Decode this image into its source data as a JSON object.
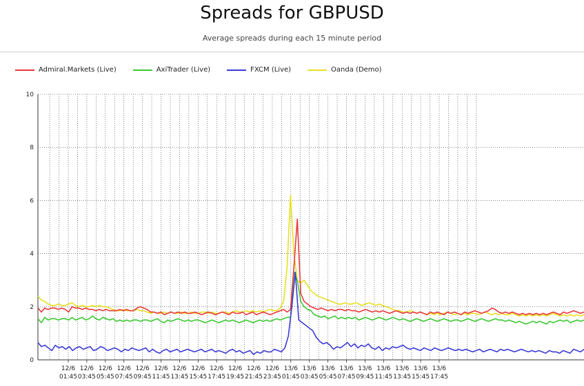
{
  "chart_data": {
    "type": "line",
    "title": "Spreads for GBPUSD",
    "subtitle": "Average spreads during each 15 minute period",
    "ylim": [
      0,
      10
    ],
    "yticks": [
      0,
      2,
      4,
      6,
      8,
      10
    ],
    "grid": true,
    "legend_position": "top-left",
    "x_labels": [
      {
        "date": "12/6",
        "time": "01:45"
      },
      {
        "date": "12/6",
        "time": "03:45"
      },
      {
        "date": "12/6",
        "time": "05:45"
      },
      {
        "date": "12/6",
        "time": "07:45"
      },
      {
        "date": "12/6",
        "time": "09:45"
      },
      {
        "date": "12/6",
        "time": "11:45"
      },
      {
        "date": "12/6",
        "time": "13:45"
      },
      {
        "date": "12/6",
        "time": "15:45"
      },
      {
        "date": "12/6",
        "time": "17:45"
      },
      {
        "date": "12/6",
        "time": "19:45"
      },
      {
        "date": "12/6",
        "time": "21:45"
      },
      {
        "date": "12/6",
        "time": "23:45"
      },
      {
        "date": "13/6",
        "time": "01:45"
      },
      {
        "date": "13/6",
        "time": "03:45"
      },
      {
        "date": "13/6",
        "time": "05:45"
      },
      {
        "date": "13/6",
        "time": "07:45"
      },
      {
        "date": "13/6",
        "time": "09:45"
      },
      {
        "date": "13/6",
        "time": "11:45"
      },
      {
        "date": "13/6",
        "time": "13:45"
      },
      {
        "date": "13/6",
        "time": "15:45"
      },
      {
        "date": "13/6",
        "time": "17:45"
      }
    ],
    "series": [
      {
        "name": "Admiral.Markets (Live)",
        "color": "#e8383d",
        "values": [
          1.95,
          1.8,
          1.95,
          1.9,
          1.95,
          1.95,
          1.9,
          1.95,
          1.9,
          1.8,
          2.0,
          1.95,
          1.95,
          1.9,
          1.95,
          1.9,
          1.9,
          1.85,
          1.9,
          1.85,
          1.9,
          1.85,
          1.85,
          1.85,
          1.9,
          1.85,
          1.9,
          1.85,
          1.85,
          1.95,
          2.0,
          1.95,
          1.9,
          1.8,
          1.8,
          1.75,
          1.8,
          1.7,
          1.75,
          1.8,
          1.75,
          1.8,
          1.75,
          1.8,
          1.75,
          1.75,
          1.8,
          1.75,
          1.7,
          1.75,
          1.8,
          1.75,
          1.7,
          1.75,
          1.8,
          1.75,
          1.7,
          1.8,
          1.75,
          1.75,
          1.8,
          1.7,
          1.75,
          1.8,
          1.7,
          1.75,
          1.8,
          1.75,
          1.7,
          1.75,
          1.8,
          1.85,
          1.9,
          1.8,
          1.9,
          3.5,
          5.3,
          2.5,
          2.2,
          2.1,
          2.0,
          1.95,
          1.9,
          1.95,
          1.9,
          1.85,
          1.9,
          1.85,
          1.9,
          1.9,
          1.85,
          1.9,
          1.85,
          1.85,
          1.8,
          1.85,
          1.9,
          1.85,
          1.8,
          1.85,
          1.8,
          1.85,
          1.8,
          1.75,
          1.8,
          1.85,
          1.8,
          1.75,
          1.8,
          1.75,
          1.8,
          1.75,
          1.8,
          1.75,
          1.7,
          1.8,
          1.75,
          1.8,
          1.75,
          1.7,
          1.8,
          1.75,
          1.8,
          1.75,
          1.7,
          1.8,
          1.75,
          1.8,
          1.85,
          1.8,
          1.75,
          1.8,
          1.85,
          1.95,
          1.9,
          1.8,
          1.75,
          1.8,
          1.75,
          1.8,
          1.75,
          1.7,
          1.75,
          1.7,
          1.75,
          1.7,
          1.75,
          1.7,
          1.75,
          1.7,
          1.75,
          1.8,
          1.75,
          1.7,
          1.8,
          1.75,
          1.8,
          1.85,
          1.8,
          1.75,
          1.8
        ]
      },
      {
        "name": "AxiTrader (Live)",
        "color": "#3cc832",
        "values": [
          1.55,
          1.4,
          1.6,
          1.5,
          1.55,
          1.55,
          1.5,
          1.55,
          1.55,
          1.5,
          1.6,
          1.5,
          1.55,
          1.6,
          1.5,
          1.55,
          1.65,
          1.55,
          1.5,
          1.6,
          1.55,
          1.5,
          1.55,
          1.45,
          1.5,
          1.45,
          1.5,
          1.45,
          1.5,
          1.5,
          1.45,
          1.5,
          1.5,
          1.45,
          1.5,
          1.55,
          1.45,
          1.4,
          1.5,
          1.45,
          1.5,
          1.55,
          1.5,
          1.45,
          1.5,
          1.45,
          1.5,
          1.5,
          1.45,
          1.4,
          1.45,
          1.5,
          1.45,
          1.4,
          1.45,
          1.5,
          1.45,
          1.5,
          1.45,
          1.4,
          1.45,
          1.5,
          1.45,
          1.4,
          1.45,
          1.5,
          1.45,
          1.5,
          1.45,
          1.5,
          1.55,
          1.5,
          1.55,
          1.6,
          1.6,
          3.3,
          3.0,
          2.2,
          2.0,
          1.9,
          1.85,
          1.7,
          1.65,
          1.6,
          1.65,
          1.55,
          1.6,
          1.65,
          1.55,
          1.6,
          1.55,
          1.6,
          1.55,
          1.6,
          1.5,
          1.55,
          1.6,
          1.55,
          1.5,
          1.55,
          1.6,
          1.55,
          1.5,
          1.55,
          1.6,
          1.55,
          1.5,
          1.55,
          1.5,
          1.45,
          1.5,
          1.55,
          1.5,
          1.45,
          1.5,
          1.55,
          1.5,
          1.45,
          1.5,
          1.55,
          1.5,
          1.45,
          1.5,
          1.5,
          1.45,
          1.5,
          1.55,
          1.5,
          1.45,
          1.5,
          1.55,
          1.5,
          1.45,
          1.5,
          1.55,
          1.5,
          1.5,
          1.45,
          1.5,
          1.45,
          1.4,
          1.45,
          1.4,
          1.35,
          1.4,
          1.45,
          1.4,
          1.45,
          1.4,
          1.35,
          1.45,
          1.4,
          1.45,
          1.5,
          1.45,
          1.5,
          1.4,
          1.45,
          1.5,
          1.45,
          1.5
        ]
      },
      {
        "name": "FXCM (Live)",
        "color": "#3a3ad6",
        "values": [
          0.65,
          0.5,
          0.55,
          0.45,
          0.35,
          0.55,
          0.45,
          0.5,
          0.4,
          0.5,
          0.35,
          0.45,
          0.5,
          0.4,
          0.45,
          0.5,
          0.35,
          0.4,
          0.5,
          0.45,
          0.35,
          0.4,
          0.45,
          0.4,
          0.3,
          0.4,
          0.35,
          0.45,
          0.4,
          0.35,
          0.4,
          0.45,
          0.3,
          0.4,
          0.3,
          0.25,
          0.35,
          0.4,
          0.3,
          0.35,
          0.4,
          0.3,
          0.35,
          0.4,
          0.35,
          0.3,
          0.35,
          0.4,
          0.3,
          0.35,
          0.4,
          0.3,
          0.35,
          0.3,
          0.25,
          0.35,
          0.4,
          0.3,
          0.35,
          0.25,
          0.3,
          0.35,
          0.2,
          0.3,
          0.25,
          0.35,
          0.3,
          0.3,
          0.4,
          0.35,
          0.3,
          0.45,
          0.9,
          2.0,
          3.3,
          1.5,
          1.4,
          1.3,
          1.2,
          1.1,
          0.85,
          0.7,
          0.6,
          0.65,
          0.55,
          0.4,
          0.5,
          0.45,
          0.55,
          0.65,
          0.5,
          0.6,
          0.45,
          0.55,
          0.5,
          0.6,
          0.45,
          0.4,
          0.5,
          0.35,
          0.45,
          0.4,
          0.5,
          0.45,
          0.5,
          0.55,
          0.45,
          0.4,
          0.45,
          0.4,
          0.35,
          0.45,
          0.4,
          0.35,
          0.45,
          0.4,
          0.35,
          0.4,
          0.45,
          0.4,
          0.35,
          0.4,
          0.35,
          0.4,
          0.35,
          0.3,
          0.35,
          0.4,
          0.3,
          0.35,
          0.4,
          0.35,
          0.3,
          0.4,
          0.35,
          0.4,
          0.35,
          0.3,
          0.35,
          0.4,
          0.35,
          0.3,
          0.35,
          0.3,
          0.35,
          0.3,
          0.25,
          0.35,
          0.3,
          0.3,
          0.25,
          0.35,
          0.3,
          0.25,
          0.4,
          0.35,
          0.3,
          0.4
        ]
      },
      {
        "name": "Oanda (Demo)",
        "color": "#e6e020",
        "values": [
          2.4,
          2.25,
          2.2,
          2.1,
          2.05,
          2.05,
          2.1,
          2.05,
          2.05,
          2.1,
          2.15,
          2.05,
          2.0,
          2.05,
          2.0,
          2.0,
          2.05,
          2.0,
          2.05,
          2.0,
          2.0,
          1.95,
          1.9,
          1.85,
          1.85,
          1.9,
          1.85,
          1.85,
          1.85,
          1.9,
          1.85,
          1.85,
          1.8,
          1.75,
          1.8,
          1.75,
          1.75,
          1.8,
          1.75,
          1.8,
          1.75,
          1.75,
          1.8,
          1.75,
          1.75,
          1.8,
          1.75,
          1.75,
          1.8,
          1.8,
          1.75,
          1.8,
          1.75,
          1.75,
          1.8,
          1.8,
          1.75,
          1.8,
          1.85,
          1.8,
          1.8,
          1.85,
          1.8,
          1.85,
          1.8,
          1.85,
          1.8,
          1.85,
          1.9,
          1.85,
          1.85,
          1.95,
          2.2,
          3.5,
          6.2,
          4.0,
          3.0,
          2.9,
          3.0,
          2.8,
          2.6,
          2.5,
          2.4,
          2.35,
          2.3,
          2.25,
          2.2,
          2.15,
          2.1,
          2.1,
          2.15,
          2.1,
          2.1,
          2.15,
          2.1,
          2.05,
          2.1,
          2.15,
          2.1,
          2.05,
          2.1,
          2.05,
          2.0,
          1.95,
          1.9,
          1.85,
          1.85,
          1.8,
          1.8,
          1.85,
          1.8,
          1.75,
          1.8,
          1.75,
          1.7,
          1.75,
          1.7,
          1.75,
          1.7,
          1.75,
          1.8,
          1.75,
          1.7,
          1.75,
          1.7,
          1.75,
          1.7,
          1.75,
          1.75,
          1.7,
          1.75,
          1.8,
          1.75,
          1.7,
          1.75,
          1.7,
          1.75,
          1.7,
          1.7,
          1.75,
          1.7,
          1.65,
          1.7,
          1.65,
          1.7,
          1.65,
          1.7,
          1.65,
          1.7,
          1.65,
          1.7,
          1.75,
          1.7,
          1.65,
          1.7,
          1.65,
          1.7,
          1.65,
          1.7,
          1.65,
          1.7
        ]
      }
    ]
  }
}
